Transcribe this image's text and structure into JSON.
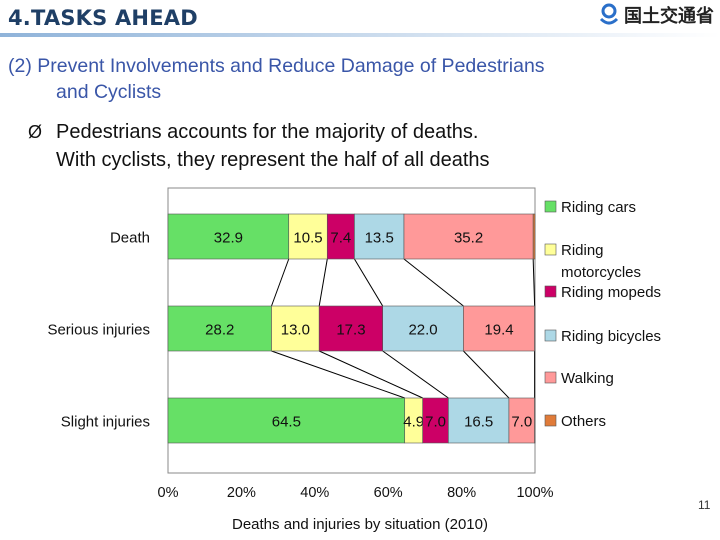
{
  "header": {
    "title": "4.TASKS AHEAD",
    "logo_text": "国土交通省",
    "logo_icon": "mlit-swirl-icon"
  },
  "subtitle": {
    "line1": "(2) Prevent Involvements and Reduce Damage of Pedestrians",
    "line2": "and Cyclists"
  },
  "bullet": {
    "marker": "Ø",
    "line1": "Pedestrians accounts for the majority of deaths.",
    "line2": "With cyclists, they represent the half of all deaths"
  },
  "page_number": "11",
  "caption": "Deaths and injuries by situation (2010)",
  "chart_data": {
    "type": "bar",
    "orientation": "horizontal",
    "stacked": true,
    "percent": true,
    "categories": [
      "Death",
      "Serious injuries",
      "Slight injuries"
    ],
    "series": [
      {
        "name": "Riding cars",
        "values": [
          32.9,
          28.2,
          64.5
        ],
        "labels": [
          "32.9",
          "28.2",
          "64.5"
        ],
        "color": "#66e066"
      },
      {
        "name": "Riding motorcycles",
        "values": [
          10.5,
          13.0,
          4.9
        ],
        "labels": [
          "10.5",
          "13.0",
          "4.9"
        ],
        "color": "#ffff99"
      },
      {
        "name": "Riding mopeds",
        "values": [
          7.4,
          17.3,
          7.0
        ],
        "labels": [
          "7.4",
          "17.3",
          "7.0"
        ],
        "color": "#cc0066"
      },
      {
        "name": "Riding bicycles",
        "values": [
          13.5,
          22.0,
          16.5
        ],
        "labels": [
          "13.5",
          "22.0",
          "16.5"
        ],
        "color": "#add8e6"
      },
      {
        "name": "Walking",
        "values": [
          35.2,
          19.4,
          7.0
        ],
        "labels": [
          "35.2",
          "19.4",
          "7.0"
        ],
        "color": "#ff9999"
      },
      {
        "name": "Others",
        "values": [
          0.5,
          0.1,
          0.1
        ],
        "labels": [
          "",
          "",
          ""
        ],
        "color": "#e07b39"
      }
    ],
    "xticks": [
      "0%",
      "20%",
      "40%",
      "60%",
      "80%",
      "100%"
    ],
    "xlim": [
      0,
      100
    ],
    "legend_position": "right",
    "connector_lines": true
  }
}
